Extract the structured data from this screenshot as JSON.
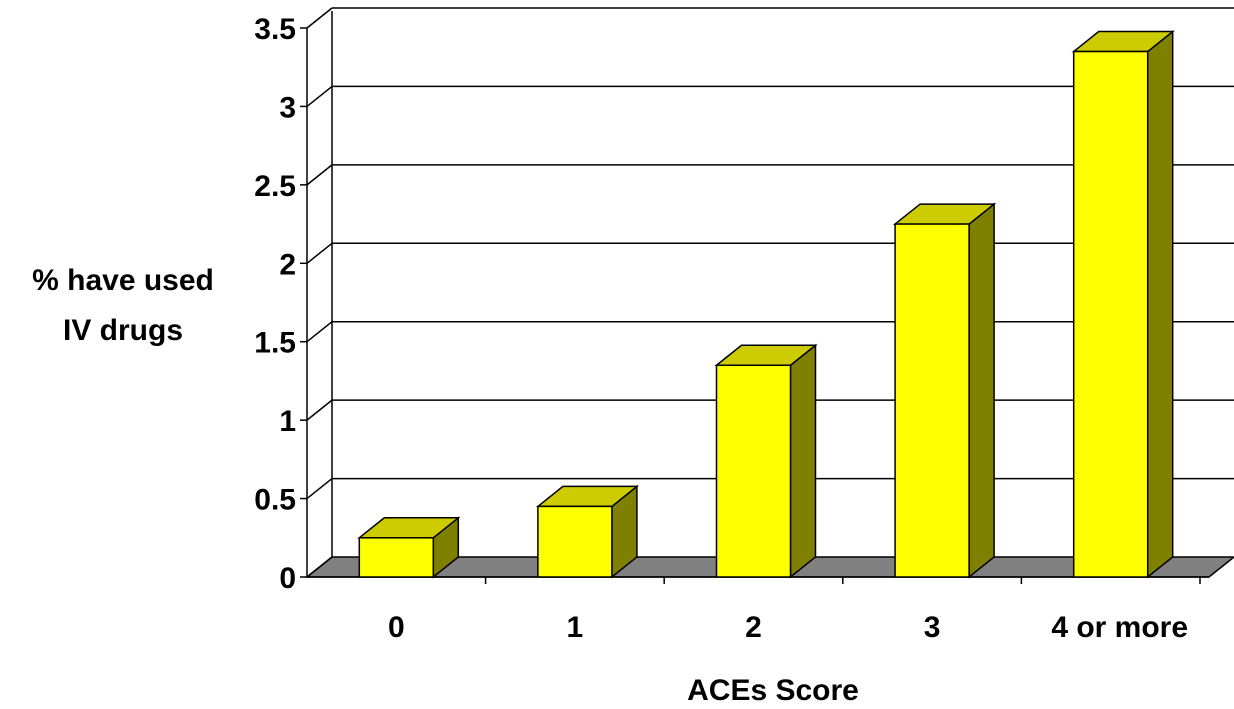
{
  "chart_data": {
    "type": "bar",
    "categories": [
      "0",
      "1",
      "2",
      "3",
      "4 or more"
    ],
    "values": [
      0.25,
      0.45,
      1.35,
      2.25,
      3.35
    ],
    "xlabel": "ACEs Score",
    "ylabel": "% have used\nIV drugs",
    "ylim": [
      0,
      3.5
    ],
    "yticks": [
      "0",
      "0.5",
      "1",
      "1.5",
      "2",
      "2.5",
      "3",
      "3.5"
    ],
    "grid": true,
    "legend": "none",
    "colors": {
      "bar_front": "#ffff00",
      "bar_top": "#cccc00",
      "bar_side": "#808000",
      "floor": "#808080",
      "gridline": "#000000"
    }
  }
}
